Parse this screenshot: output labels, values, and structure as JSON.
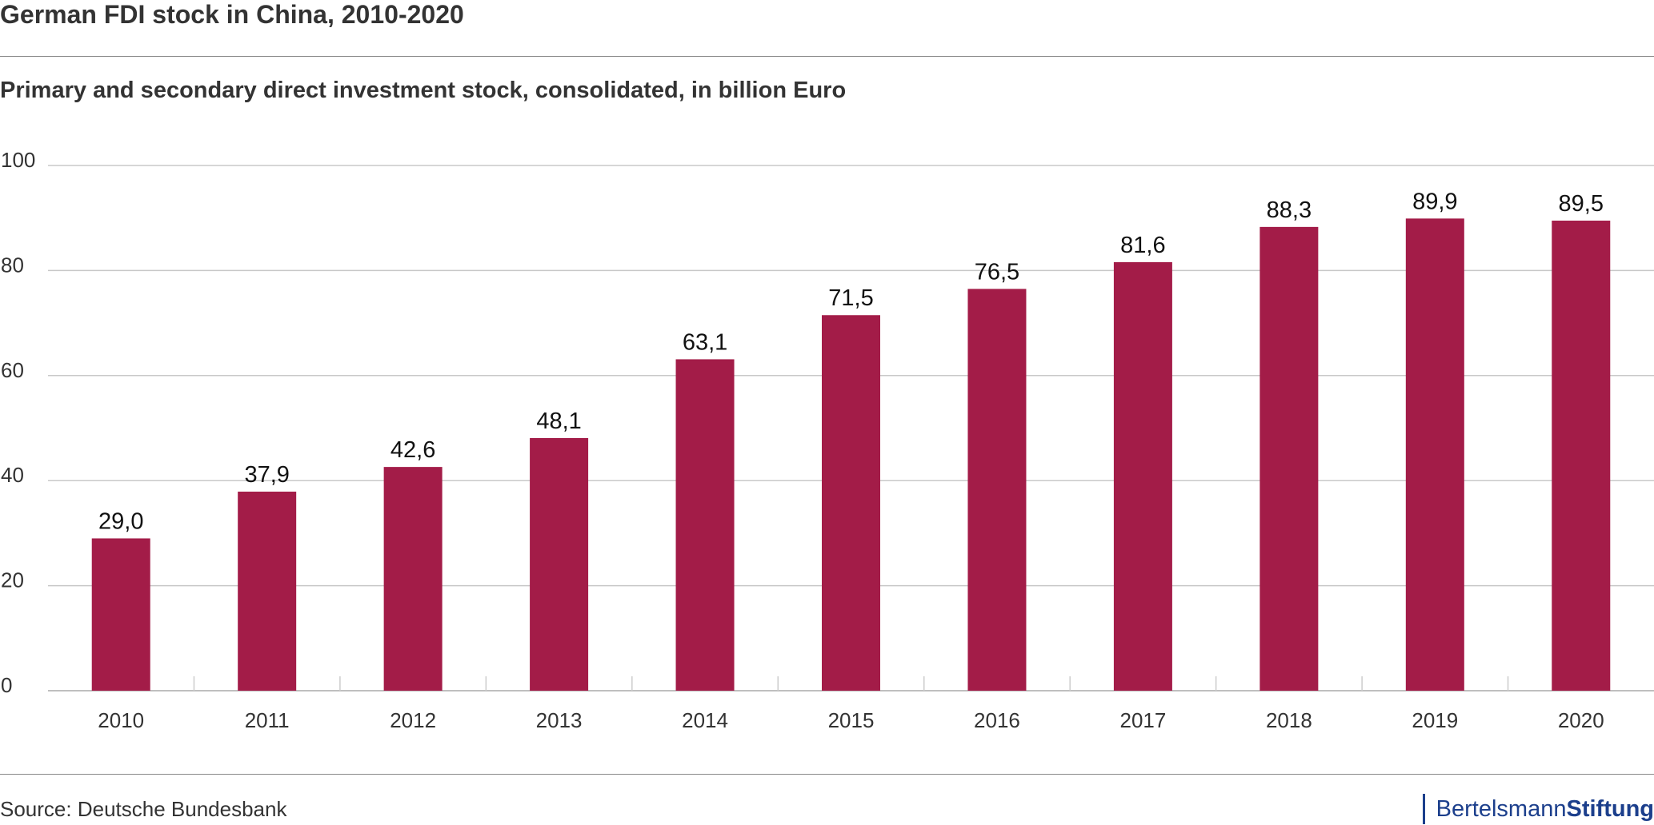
{
  "title": "German FDI stock in China, 2010-2020",
  "subtitle": "Primary and secondary direct investment stock, consolidated, in billion Euro",
  "source": "Source: Deutsche Bundesbank",
  "logo": {
    "part1": "Bertelsmann",
    "part2": "Stiftung"
  },
  "colors": {
    "bar": "#a31c48",
    "grid": "#c8c8c8",
    "logo": "#1c3f8c"
  },
  "chart_data": {
    "type": "bar",
    "title": "German FDI stock in China, 2010-2020",
    "subtitle": "Primary and secondary direct investment stock, consolidated, in billion Euro",
    "categories": [
      "2010",
      "2011",
      "2012",
      "2013",
      "2014",
      "2015",
      "2016",
      "2017",
      "2018",
      "2019",
      "2020"
    ],
    "values": [
      29.0,
      37.9,
      42.6,
      48.1,
      63.1,
      71.5,
      76.5,
      81.6,
      88.3,
      89.9,
      89.5
    ],
    "value_labels": [
      "29,0",
      "37,9",
      "42,6",
      "48,1",
      "63,1",
      "71,5",
      "76,5",
      "81,6",
      "88,3",
      "89,9",
      "89,5"
    ],
    "ylim": [
      0,
      100
    ],
    "yticks": [
      "0",
      "20",
      "40",
      "60",
      "80",
      "100"
    ],
    "grid": true,
    "legend": "none"
  }
}
